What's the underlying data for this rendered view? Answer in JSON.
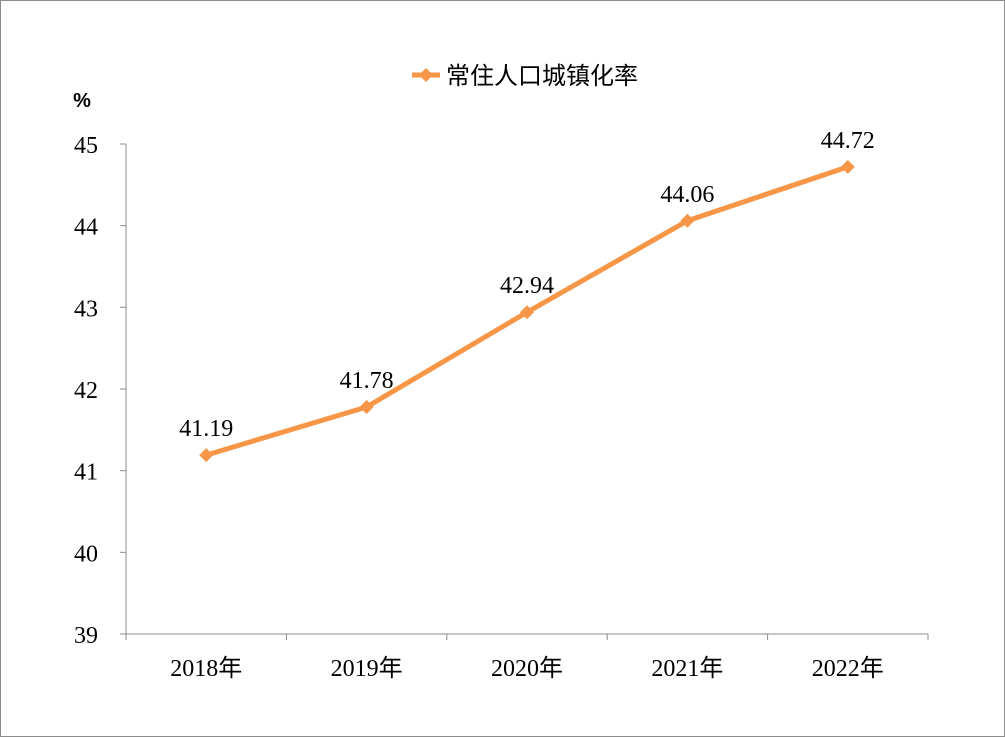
{
  "chart_data": {
    "type": "line",
    "title": "",
    "xlabel": "",
    "ylabel": "%",
    "categories": [
      "2018年",
      "2019年",
      "2020年",
      "2021年",
      "2022年"
    ],
    "series": [
      {
        "name": "常住人口城镇化率",
        "values": [
          41.19,
          41.78,
          42.94,
          44.06,
          44.72
        ]
      }
    ],
    "data_labels": [
      "41.19",
      "41.78",
      "42.94",
      "44.06",
      "44.72"
    ],
    "ylim": [
      39,
      45
    ],
    "yticks": [
      39,
      40,
      41,
      42,
      43,
      44,
      45
    ],
    "grid": false,
    "legend_position": "top",
    "line_color": "#F79646"
  }
}
